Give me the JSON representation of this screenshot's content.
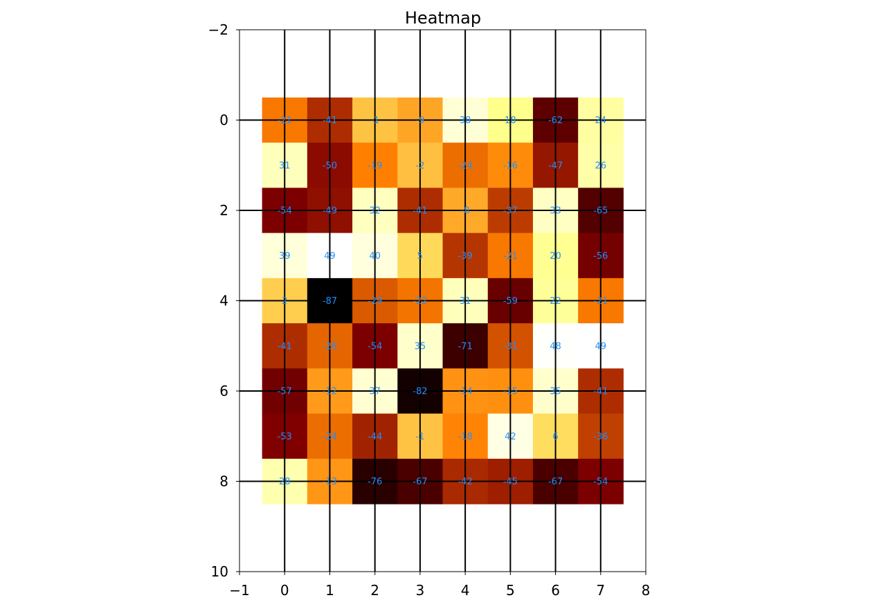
{
  "chart_data": {
    "type": "heatmap",
    "title": "Heatmap",
    "xlabel": "",
    "ylabel": "",
    "xlim": [
      -1,
      8
    ],
    "ylim": [
      10,
      -2
    ],
    "x_ticks": [
      "−1",
      "0",
      "1",
      "2",
      "3",
      "4",
      "5",
      "6",
      "7",
      "8"
    ],
    "y_ticks": [
      "−2",
      "0",
      "2",
      "4",
      "6",
      "8",
      "10"
    ],
    "colormap": "afmhot",
    "value_range": [
      -87,
      49
    ],
    "label_color": "#1f8fff",
    "grid_color": "#000000",
    "grid_lines": "horizontal and vertical lines at integer rows and columns",
    "rows": [
      0,
      1,
      2,
      3,
      4,
      5,
      6,
      7,
      8
    ],
    "columns": [
      0,
      1,
      2,
      3,
      4,
      5,
      6,
      7
    ],
    "values": [
      [
        -21,
        -41,
        -1,
        -9,
        38,
        18,
        -62,
        24
      ],
      [
        31,
        -50,
        -19,
        -2,
        -24,
        -16,
        -47,
        26
      ],
      [
        -54,
        -49,
        32,
        -41,
        -8,
        -37,
        33,
        -65
      ],
      [
        39,
        49,
        40,
        5,
        -39,
        -21,
        20,
        -56
      ],
      [
        2,
        -87,
        -29,
        -22,
        31,
        -59,
        22,
        -21
      ],
      [
        -41,
        -26,
        -54,
        35,
        -71,
        -31,
        48,
        49
      ],
      [
        -57,
        -12,
        37,
        -82,
        -14,
        -15,
        35,
        -41
      ],
      [
        -53,
        -24,
        -44,
        -1,
        -18,
        42,
        6,
        -36
      ],
      [
        28,
        -13,
        -76,
        -67,
        -42,
        -45,
        -67,
        -54
      ]
    ]
  }
}
